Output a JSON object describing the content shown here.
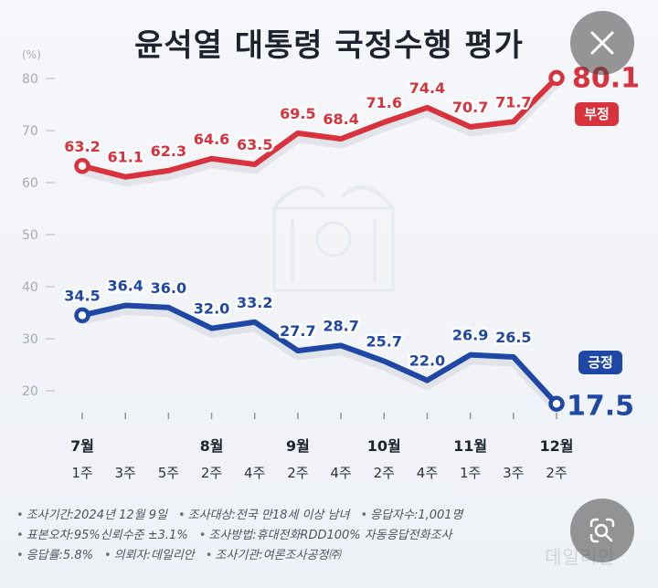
{
  "title": "윤석열 대통령 국정수행 평가",
  "chart_data": {
    "type": "line",
    "unit": "(%)",
    "ylim": [
      15,
      85
    ],
    "yticks": [
      20,
      30,
      40,
      50,
      60,
      70,
      80
    ],
    "grid": false,
    "x": [
      "7월 1주",
      "7월 3주",
      "7월 5주",
      "8월 2주",
      "8월 4주",
      "9월 2주",
      "9월 4주",
      "10월 2주",
      "10월 4주",
      "11월 1주",
      "11월 3주",
      "12월 2주"
    ],
    "month_labels": [
      "7월",
      "",
      "",
      "8월",
      "",
      "9월",
      "",
      "10월",
      "",
      "11월",
      "",
      "12월"
    ],
    "week_labels": [
      "1주",
      "3주",
      "5주",
      "2주",
      "4주",
      "2주",
      "4주",
      "2주",
      "4주",
      "1주",
      "3주",
      "2주"
    ],
    "series": [
      {
        "name": "부정",
        "color": "#d8323c",
        "values": [
          63.2,
          61.1,
          62.3,
          64.6,
          63.5,
          69.5,
          68.4,
          71.6,
          74.4,
          70.7,
          71.7,
          80.1
        ],
        "labels": [
          "63.2",
          "61.1",
          "62.3",
          "64.6",
          "63.5",
          "69.5",
          "68.4",
          "71.6",
          "74.4",
          "70.7",
          "71.7",
          "80.1"
        ]
      },
      {
        "name": "긍정",
        "color": "#1f48a6",
        "values": [
          34.5,
          36.4,
          36.0,
          32.0,
          33.2,
          27.7,
          28.7,
          25.7,
          22.0,
          26.9,
          26.5,
          17.5
        ],
        "labels": [
          "34.5",
          "36.4",
          "36.0",
          "32.0",
          "33.2",
          "27.7",
          "28.7",
          "25.7",
          "22.0",
          "26.9",
          "26.5",
          "17.5"
        ]
      }
    ]
  },
  "footer": {
    "rows": [
      [
        "조사기간:2024년 12월 9일",
        "조사대상:전국 만18세 이상 남녀",
        "응답자수:1,001명"
      ],
      [
        "표본오차:95%신뢰수준 ±3.1%",
        "조사방법:휴대전화RDD100% 자동응답전화조사"
      ],
      [
        "응답률:5.8%",
        "의뢰자:데일리안",
        "조사기관:여론조사공정㈜"
      ]
    ]
  },
  "watermark": "데일리안",
  "icons": {
    "close": "close-icon",
    "lens": "image-search-icon"
  }
}
